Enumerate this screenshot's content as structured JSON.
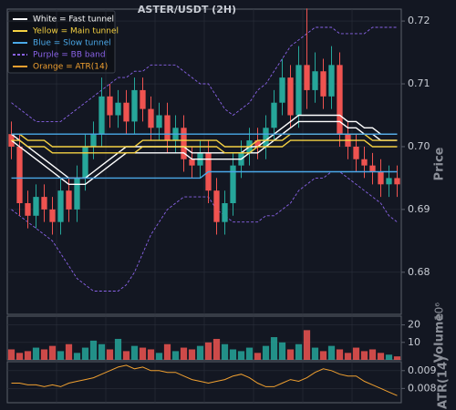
{
  "chart_data": {
    "type": "candlestick",
    "title": "ASTER/USDT (2H)",
    "up_color": "#26a69a",
    "down_color": "#ef5350",
    "grid": true,
    "legend_position": "upper left",
    "open": [
      0.702,
      0.7,
      0.691,
      0.689,
      0.692,
      0.69,
      0.688,
      0.693,
      0.69,
      0.695,
      0.7,
      0.702,
      0.708,
      0.705,
      0.707,
      0.704,
      0.709,
      0.706,
      0.703,
      0.705,
      0.701,
      0.703,
      0.698,
      0.697,
      0.699,
      0.693,
      0.688,
      0.691,
      0.697,
      0.699,
      0.701,
      0.7,
      0.703,
      0.707,
      0.711,
      0.705,
      0.713,
      0.709,
      0.712,
      0.708,
      0.713,
      0.702,
      0.7,
      0.698,
      0.697,
      0.696,
      0.694,
      0.695
    ],
    "high": [
      0.704,
      0.702,
      0.693,
      0.694,
      0.694,
      0.692,
      0.695,
      0.695,
      0.697,
      0.702,
      0.704,
      0.711,
      0.71,
      0.709,
      0.709,
      0.711,
      0.711,
      0.708,
      0.707,
      0.707,
      0.705,
      0.705,
      0.7,
      0.701,
      0.701,
      0.695,
      0.693,
      0.699,
      0.701,
      0.703,
      0.703,
      0.705,
      0.709,
      0.714,
      0.713,
      0.716,
      0.722,
      0.715,
      0.714,
      0.716,
      0.715,
      0.704,
      0.702,
      0.7,
      0.699,
      0.698,
      0.697,
      0.697
    ],
    "low": [
      0.698,
      0.689,
      0.687,
      0.687,
      0.688,
      0.686,
      0.686,
      0.688,
      0.688,
      0.693,
      0.698,
      0.7,
      0.703,
      0.703,
      0.702,
      0.702,
      0.704,
      0.701,
      0.701,
      0.699,
      0.699,
      0.696,
      0.695,
      0.695,
      0.691,
      0.686,
      0.686,
      0.689,
      0.695,
      0.697,
      0.698,
      0.698,
      0.701,
      0.705,
      0.703,
      0.703,
      0.706,
      0.707,
      0.706,
      0.706,
      0.7,
      0.698,
      0.696,
      0.695,
      0.694,
      0.692,
      0.692,
      0.692
    ],
    "close": [
      0.7,
      0.691,
      0.689,
      0.692,
      0.69,
      0.688,
      0.693,
      0.69,
      0.695,
      0.7,
      0.702,
      0.708,
      0.705,
      0.707,
      0.704,
      0.709,
      0.706,
      0.703,
      0.705,
      0.701,
      0.703,
      0.698,
      0.697,
      0.699,
      0.693,
      0.688,
      0.691,
      0.697,
      0.699,
      0.701,
      0.7,
      0.703,
      0.707,
      0.711,
      0.705,
      0.713,
      0.709,
      0.712,
      0.708,
      0.713,
      0.702,
      0.7,
      0.698,
      0.697,
      0.696,
      0.694,
      0.695,
      0.694
    ],
    "tunnels": [
      {
        "name": "White = Fast tunnel",
        "color": "#ffffff",
        "upper": [
          0.702,
          0.701,
          0.7,
          0.699,
          0.698,
          0.697,
          0.696,
          0.695,
          0.695,
          0.695,
          0.696,
          0.697,
          0.698,
          0.699,
          0.7,
          0.7,
          0.7,
          0.7,
          0.7,
          0.7,
          0.7,
          0.7,
          0.699,
          0.699,
          0.699,
          0.699,
          0.699,
          0.699,
          0.699,
          0.7,
          0.7,
          0.701,
          0.702,
          0.703,
          0.704,
          0.705,
          0.705,
          0.705,
          0.705,
          0.705,
          0.705,
          0.704,
          0.704,
          0.703,
          0.703,
          0.702,
          0.702,
          0.702
        ],
        "lower": [
          0.701,
          0.7,
          0.699,
          0.698,
          0.697,
          0.696,
          0.695,
          0.694,
          0.694,
          0.694,
          0.695,
          0.696,
          0.697,
          0.698,
          0.699,
          0.699,
          0.699,
          0.699,
          0.699,
          0.699,
          0.699,
          0.699,
          0.698,
          0.698,
          0.698,
          0.698,
          0.698,
          0.698,
          0.698,
          0.699,
          0.699,
          0.7,
          0.701,
          0.702,
          0.703,
          0.704,
          0.704,
          0.704,
          0.704,
          0.704,
          0.704,
          0.703,
          0.703,
          0.702,
          0.702,
          0.701,
          0.701,
          0.701
        ]
      },
      {
        "name": "Yellow = Main tunnel",
        "color": "#f5d142",
        "upper": [
          0.702,
          0.702,
          0.701,
          0.701,
          0.701,
          0.7,
          0.7,
          0.7,
          0.7,
          0.7,
          0.7,
          0.7,
          0.7,
          0.7,
          0.7,
          0.7,
          0.701,
          0.701,
          0.701,
          0.701,
          0.701,
          0.701,
          0.701,
          0.701,
          0.701,
          0.701,
          0.7,
          0.7,
          0.7,
          0.7,
          0.701,
          0.701,
          0.701,
          0.701,
          0.702,
          0.702,
          0.702,
          0.702,
          0.702,
          0.702,
          0.702,
          0.702,
          0.702,
          0.702,
          0.701,
          0.701,
          0.701,
          0.701
        ],
        "lower": [
          0.701,
          0.701,
          0.7,
          0.7,
          0.7,
          0.699,
          0.699,
          0.699,
          0.699,
          0.699,
          0.699,
          0.699,
          0.699,
          0.699,
          0.699,
          0.699,
          0.7,
          0.7,
          0.7,
          0.7,
          0.7,
          0.7,
          0.7,
          0.7,
          0.7,
          0.7,
          0.699,
          0.699,
          0.699,
          0.699,
          0.7,
          0.7,
          0.7,
          0.7,
          0.701,
          0.701,
          0.701,
          0.701,
          0.701,
          0.701,
          0.701,
          0.701,
          0.701,
          0.701,
          0.7,
          0.7,
          0.7,
          0.7
        ]
      },
      {
        "name": "Blue = Slow tunnel",
        "color": "#4aa8e8",
        "upper": [
          0.702,
          0.702,
          0.702,
          0.702,
          0.702,
          0.702,
          0.702,
          0.702,
          0.702,
          0.702,
          0.702,
          0.702,
          0.702,
          0.702,
          0.702,
          0.702,
          0.702,
          0.702,
          0.702,
          0.702,
          0.702,
          0.702,
          0.702,
          0.702,
          0.702,
          0.702,
          0.702,
          0.702,
          0.702,
          0.702,
          0.702,
          0.702,
          0.702,
          0.702,
          0.702,
          0.702,
          0.702,
          0.702,
          0.702,
          0.702,
          0.702,
          0.702,
          0.702,
          0.702,
          0.702,
          0.702,
          0.702,
          0.702
        ],
        "lower": [
          0.695,
          0.695,
          0.695,
          0.695,
          0.695,
          0.695,
          0.695,
          0.695,
          0.695,
          0.695,
          0.695,
          0.695,
          0.695,
          0.695,
          0.695,
          0.695,
          0.695,
          0.695,
          0.695,
          0.695,
          0.695,
          0.695,
          0.695,
          0.695,
          0.696,
          0.696,
          0.696,
          0.696,
          0.696,
          0.696,
          0.696,
          0.696,
          0.696,
          0.696,
          0.696,
          0.696,
          0.696,
          0.696,
          0.696,
          0.696,
          0.696,
          0.696,
          0.696,
          0.696,
          0.696,
          0.696,
          0.696,
          0.696
        ]
      }
    ],
    "bb": {
      "name": "Purple = BB band",
      "color": "#8a63e8",
      "upper": [
        0.707,
        0.706,
        0.705,
        0.704,
        0.704,
        0.704,
        0.704,
        0.705,
        0.706,
        0.707,
        0.708,
        0.709,
        0.71,
        0.711,
        0.711,
        0.712,
        0.712,
        0.713,
        0.713,
        0.713,
        0.713,
        0.712,
        0.711,
        0.71,
        0.71,
        0.708,
        0.706,
        0.705,
        0.706,
        0.707,
        0.709,
        0.71,
        0.712,
        0.714,
        0.716,
        0.717,
        0.718,
        0.719,
        0.719,
        0.719,
        0.718,
        0.718,
        0.718,
        0.718,
        0.719,
        0.719,
        0.719,
        0.719
      ],
      "lower": [
        0.69,
        0.689,
        0.688,
        0.687,
        0.686,
        0.685,
        0.683,
        0.681,
        0.679,
        0.678,
        0.677,
        0.677,
        0.677,
        0.677,
        0.678,
        0.68,
        0.683,
        0.686,
        0.688,
        0.69,
        0.691,
        0.692,
        0.692,
        0.692,
        0.692,
        0.69,
        0.689,
        0.688,
        0.688,
        0.688,
        0.688,
        0.689,
        0.689,
        0.69,
        0.691,
        0.693,
        0.694,
        0.695,
        0.695,
        0.696,
        0.696,
        0.695,
        0.694,
        0.693,
        0.692,
        0.691,
        0.689,
        0.688
      ]
    },
    "ylim": [
      0.6733,
      0.7219
    ],
    "yticks": [
      0.68,
      0.69,
      {
        "value": 0.7,
        "label": "0.70"
      },
      0.71,
      0.72
    ],
    "ylabel": "Price",
    "volume": [
      6,
      4,
      5,
      7,
      6,
      8,
      5,
      9,
      4,
      7,
      11,
      9,
      6,
      12,
      5,
      8,
      7,
      6,
      4,
      9,
      5,
      7,
      6,
      8,
      10,
      12,
      9,
      6,
      5,
      7,
      4,
      8,
      13,
      10,
      6,
      9,
      17,
      7,
      5,
      8,
      6,
      4,
      7,
      5,
      6,
      4,
      3,
      2
    ],
    "volume_label": "Volume",
    "volume_scale": "10⁶",
    "volume_ylim": [
      0,
      25
    ],
    "volume_yticks": [
      10,
      20
    ],
    "atr": {
      "name": "Orange = ATR(14)",
      "color": "#f0a030",
      "values": [
        0.0083,
        0.0083,
        0.0082,
        0.0082,
        0.0081,
        0.0082,
        0.0081,
        0.0083,
        0.0084,
        0.0085,
        0.0086,
        0.0088,
        0.009,
        0.0092,
        0.0093,
        0.0091,
        0.0092,
        0.009,
        0.009,
        0.0089,
        0.0089,
        0.0087,
        0.0085,
        0.0084,
        0.0083,
        0.0084,
        0.0085,
        0.0087,
        0.0088,
        0.0086,
        0.0083,
        0.0081,
        0.0081,
        0.0083,
        0.0085,
        0.0084,
        0.0086,
        0.0089,
        0.0091,
        0.009,
        0.0088,
        0.0087,
        0.0087,
        0.0084,
        0.0082,
        0.008,
        0.0078,
        0.0076
      ]
    },
    "atr_label": "ATR(14)",
    "atr_ylim": [
      0.0072,
      0.0095
    ],
    "atr_yticks": [
      0.008,
      0.009
    ]
  }
}
